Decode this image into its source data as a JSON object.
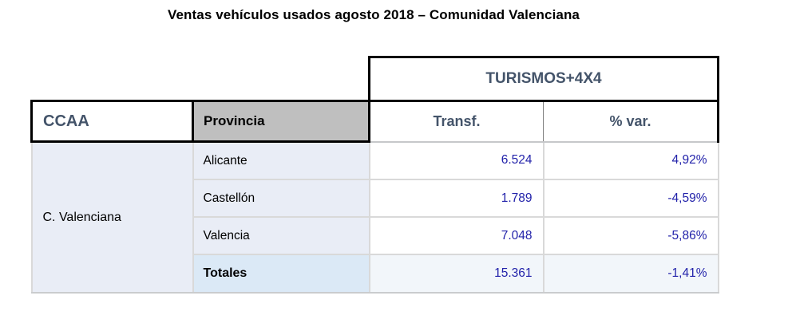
{
  "page": {
    "title": "Ventas vehículos usados agosto 2018 – Comunidad Valenciana"
  },
  "chart_data": {
    "type": "table",
    "title": "Ventas vehículos usados agosto 2018 – Comunidad Valenciana",
    "group_header": "TURISMOS+4X4",
    "columns": {
      "ccaa": "CCAA",
      "provincia": "Provincia",
      "transf": "Transf.",
      "var": "% var."
    },
    "ccaa_value": "C. Valenciana",
    "rows": [
      {
        "provincia": "Alicante",
        "transf": "6.524",
        "var": "4,92%",
        "transf_num": 6524,
        "var_pct": 4.92
      },
      {
        "provincia": "Castellón",
        "transf": "1.789",
        "var": "-4,59%",
        "transf_num": 1789,
        "var_pct": -4.59
      },
      {
        "provincia": "Valencia",
        "transf": "7.048",
        "var": "-5,86%",
        "transf_num": 7048,
        "var_pct": -5.86
      }
    ],
    "totals": {
      "label": "Totales",
      "transf": "15.361",
      "var": "-1,41%",
      "transf_num": 15361,
      "var_pct": -1.41
    }
  },
  "colors": {
    "header_text": "#44546A",
    "provincia_header_bg": "#BFBFBF",
    "row_bg": "#E9EDF6",
    "totals_label_bg": "#DBE9F6",
    "totals_value_bg": "#F2F6FA",
    "value_text": "#2222AA"
  }
}
